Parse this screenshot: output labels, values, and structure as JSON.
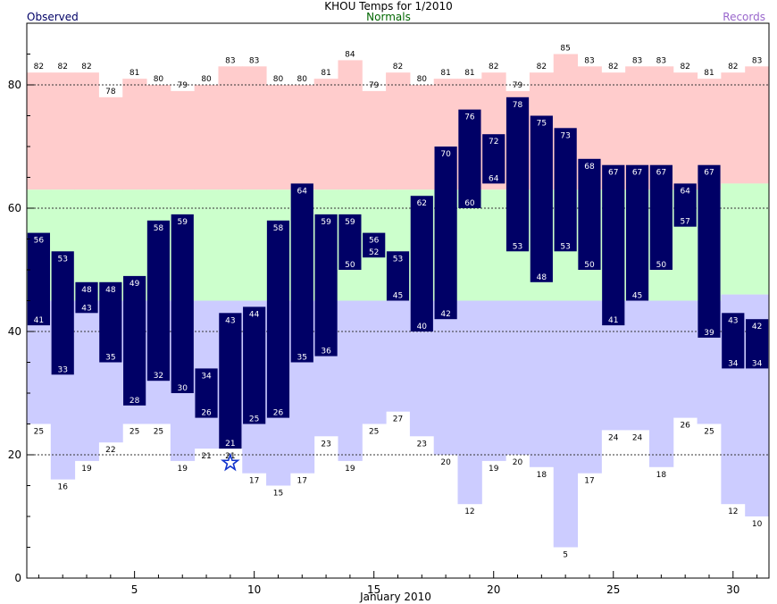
{
  "header": {
    "title": "KHOU Temps for 1/2010",
    "observed_label": "Observed",
    "normals_label": "Normals",
    "records_label": "Records"
  },
  "colors": {
    "record_high_fill": "#ffcccc",
    "normal_fill": "#ccffcc",
    "record_low_fill": "#ccccff",
    "observed_bar": "#000066",
    "observed_label_text": "#000066",
    "normals_label_text": "#006600",
    "records_label_text": "#9966cc",
    "star": "#1133cc"
  },
  "chart_data": {
    "type": "bar",
    "title": "KHOU Temps for 1/2010",
    "xlabel": "January 2010",
    "ylabel": "",
    "xlim": [
      0.5,
      31.5
    ],
    "ylim": [
      0,
      90
    ],
    "xticks": [
      5,
      10,
      15,
      20,
      25,
      30
    ],
    "yticks": [
      0,
      20,
      40,
      60,
      80
    ],
    "dotted_gridlines": [
      20,
      40,
      60,
      80
    ],
    "legend": [
      "Observed",
      "Normals",
      "Records"
    ],
    "legend_placement": "top",
    "days": [
      1,
      2,
      3,
      4,
      5,
      6,
      7,
      8,
      9,
      10,
      11,
      12,
      13,
      14,
      15,
      16,
      17,
      18,
      19,
      20,
      21,
      22,
      23,
      24,
      25,
      26,
      27,
      28,
      29,
      30,
      31
    ],
    "record_high": [
      82,
      82,
      82,
      78,
      81,
      80,
      79,
      80,
      83,
      83,
      80,
      80,
      81,
      84,
      79,
      82,
      80,
      81,
      81,
      82,
      79,
      82,
      85,
      83,
      82,
      83,
      83,
      82,
      81,
      82,
      83
    ],
    "record_low": [
      25,
      16,
      19,
      22,
      25,
      25,
      19,
      21,
      21,
      17,
      15,
      17,
      23,
      19,
      25,
      27,
      23,
      20,
      12,
      19,
      20,
      18,
      5,
      17,
      24,
      24,
      18,
      26,
      25,
      12,
      10
    ],
    "normal_high": [
      63,
      63,
      63,
      63,
      63,
      63,
      63,
      63,
      63,
      63,
      63,
      63,
      63,
      63,
      63,
      63,
      63,
      63,
      63,
      63,
      63,
      63,
      63,
      63,
      63,
      63,
      63,
      63,
      63,
      64,
      64
    ],
    "normal_low": [
      45,
      45,
      45,
      45,
      45,
      45,
      45,
      45,
      45,
      45,
      45,
      45,
      45,
      45,
      45,
      45,
      45,
      45,
      45,
      45,
      45,
      45,
      45,
      45,
      45,
      45,
      45,
      45,
      45,
      46,
      46
    ],
    "observed_high": [
      56,
      53,
      48,
      48,
      49,
      58,
      59,
      34,
      43,
      44,
      58,
      64,
      59,
      59,
      56,
      53,
      62,
      70,
      76,
      72,
      78,
      75,
      73,
      68,
      67,
      67,
      67,
      64,
      67,
      43,
      42
    ],
    "observed_low": [
      41,
      33,
      43,
      35,
      28,
      32,
      30,
      26,
      21,
      25,
      26,
      35,
      36,
      50,
      52,
      45,
      40,
      42,
      60,
      64,
      53,
      48,
      53,
      50,
      41,
      45,
      50,
      57,
      39,
      34,
      34
    ],
    "record_low_marker_days": [
      9
    ]
  }
}
